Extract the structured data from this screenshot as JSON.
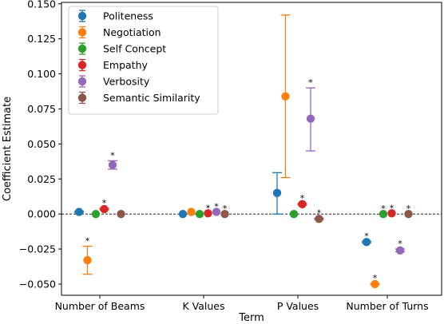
{
  "chart_data": {
    "type": "scatter",
    "subtype": "errorbar",
    "xlabel": "Term",
    "ylabel": "Coefficient Estimate",
    "categories": [
      "Number of Beams",
      "K Values",
      "P Values",
      "Number of Turns"
    ],
    "ylim": [
      -0.058,
      0.151
    ],
    "yticks": [
      -0.05,
      -0.025,
      0.0,
      0.025,
      0.05,
      0.075,
      0.1,
      0.125,
      0.15
    ],
    "ytick_labels": [
      "−0.050",
      "−0.025",
      "0.000",
      "0.025",
      "0.050",
      "0.075",
      "0.100",
      "0.125",
      "0.150"
    ],
    "reference_line": 0,
    "legend_position": "top-left",
    "significance_marker": "*",
    "series": [
      {
        "name": "Politeness",
        "color": "#1f77b4",
        "values": [
          0.0015,
          0.0,
          0.015,
          -0.02
        ],
        "err_low": [
          0.0005,
          0.0,
          0.015,
          0.0005
        ],
        "err_high": [
          0.0005,
          0.0,
          0.0145,
          0.0005
        ],
        "significant": [
          false,
          false,
          false,
          true
        ]
      },
      {
        "name": "Negotiation",
        "color": "#ff7f0e",
        "values": [
          -0.033,
          0.0015,
          0.084,
          -0.05
        ],
        "err_low": [
          0.01,
          0.0,
          0.058,
          0.0005
        ],
        "err_high": [
          0.01,
          0.0,
          0.058,
          0.0005
        ],
        "significant": [
          true,
          false,
          false,
          true
        ]
      },
      {
        "name": "Self Concept",
        "color": "#2ca02c",
        "values": [
          0.0,
          0.0,
          0.0,
          0.0
        ],
        "err_low": [
          0.0,
          0.0,
          0.0,
          0.0
        ],
        "err_high": [
          0.0,
          0.0,
          0.0,
          0.0
        ],
        "significant": [
          false,
          false,
          false,
          true
        ]
      },
      {
        "name": "Empathy",
        "color": "#d62728",
        "values": [
          0.0035,
          0.0005,
          0.007,
          0.0005
        ],
        "err_low": [
          0.0005,
          0.0,
          0.0005,
          0.0
        ],
        "err_high": [
          0.0005,
          0.0,
          0.0005,
          0.0
        ],
        "significant": [
          true,
          true,
          true,
          true
        ]
      },
      {
        "name": "Verbosity",
        "color": "#9467bd",
        "values": [
          0.035,
          0.0015,
          0.068,
          -0.026
        ],
        "err_low": [
          0.003,
          0.0,
          0.023,
          0.001
        ],
        "err_high": [
          0.003,
          0.0,
          0.022,
          0.001
        ],
        "significant": [
          true,
          true,
          true,
          true
        ]
      },
      {
        "name": "Semantic Similarity",
        "color": "#8c564b",
        "values": [
          0.0,
          0.0,
          -0.0035,
          0.0
        ],
        "err_low": [
          0.0,
          0.0,
          0.0005,
          0.0
        ],
        "err_high": [
          0.0,
          0.0,
          0.0005,
          0.0
        ],
        "significant": [
          false,
          true,
          true,
          true
        ]
      }
    ]
  }
}
